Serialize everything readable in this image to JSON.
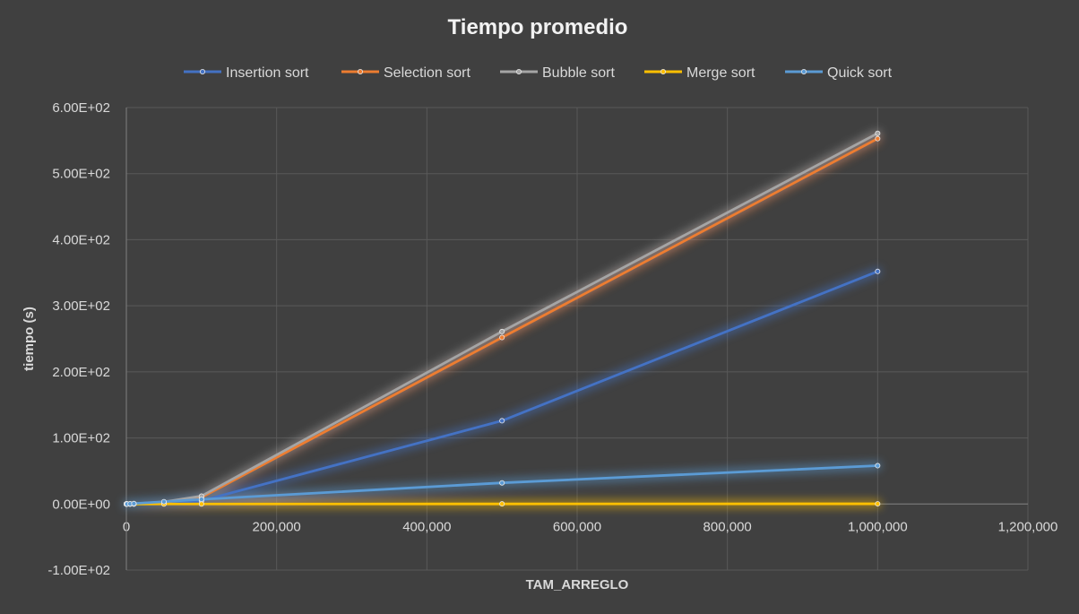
{
  "chart_data": {
    "type": "line",
    "title": "Tiempo promedio",
    "xlabel": "TAM_ARREGLO",
    "ylabel": "tiempo (s)",
    "xlim": [
      0,
      1200000
    ],
    "ylim": [
      -100,
      600
    ],
    "x_ticks": [
      0,
      200000,
      400000,
      600000,
      800000,
      1000000,
      1200000
    ],
    "x_tick_labels": [
      "0",
      "200,000",
      "400,000",
      "600,000",
      "800,000",
      "1,000,000",
      "1,200,000"
    ],
    "y_ticks": [
      -100,
      0,
      100,
      200,
      300,
      400,
      500,
      600
    ],
    "y_tick_labels": [
      "-1.00E+02",
      "0.00E+00",
      "1.00E+02",
      "2.00E+02",
      "3.00E+02",
      "4.00E+02",
      "5.00E+02",
      "6.00E+02"
    ],
    "grid": true,
    "legend_position": "top",
    "series": [
      {
        "name": "Insertion sort",
        "color": "#4472C4",
        "x": [
          10,
          100,
          1000,
          5000,
          10000,
          50000,
          100000,
          500000,
          1000000
        ],
        "y": [
          0,
          0,
          0,
          0.05,
          0.1,
          1.2,
          4.8,
          126,
          352
        ]
      },
      {
        "name": "Selection sort",
        "color": "#ED7D31",
        "x": [
          10,
          100,
          1000,
          5000,
          10000,
          50000,
          100000,
          500000,
          1000000
        ],
        "y": [
          0,
          0,
          0,
          0.08,
          0.3,
          2.5,
          10,
          252,
          553
        ]
      },
      {
        "name": "Bubble sort",
        "color": "#A5A5A5",
        "x": [
          10,
          100,
          1000,
          5000,
          10000,
          50000,
          100000,
          500000,
          1000000
        ],
        "y": [
          0,
          0,
          0,
          0.1,
          0.4,
          3,
          12,
          261,
          561
        ]
      },
      {
        "name": "Merge sort",
        "color": "#FFC000",
        "x": [
          10,
          100,
          1000,
          5000,
          10000,
          50000,
          100000,
          500000,
          1000000
        ],
        "y": [
          0,
          0,
          0,
          0,
          0,
          0.01,
          0.03,
          0.15,
          0.3
        ]
      },
      {
        "name": "Quick sort",
        "color": "#5B9BD5",
        "x": [
          10,
          100,
          1000,
          5000,
          10000,
          50000,
          100000,
          500000,
          1000000
        ],
        "y": [
          0,
          0,
          0,
          0.3,
          0.7,
          3.5,
          7,
          32,
          58
        ]
      }
    ]
  }
}
